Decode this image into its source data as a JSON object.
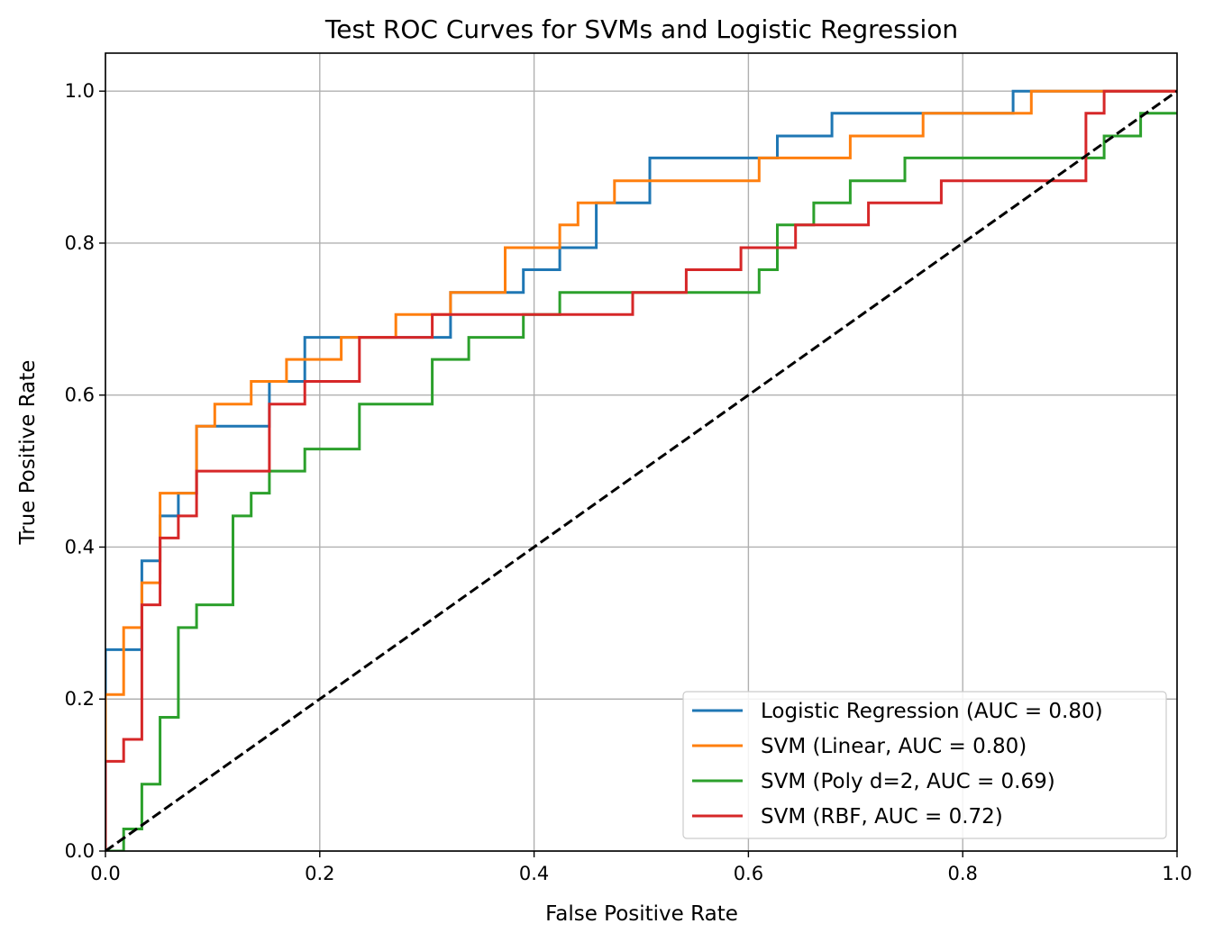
{
  "chart_data": {
    "type": "line",
    "title": "Test ROC Curves for SVMs and Logistic Regression",
    "xlabel": "False Positive Rate",
    "ylabel": "True Positive Rate",
    "xlim": [
      0.0,
      1.0
    ],
    "ylim": [
      0.0,
      1.05
    ],
    "xticks": [
      0.0,
      0.2,
      0.4,
      0.6,
      0.8,
      1.0
    ],
    "yticks": [
      0.0,
      0.2,
      0.4,
      0.6,
      0.8,
      1.0
    ],
    "xtick_labels": [
      "0.0",
      "0.2",
      "0.4",
      "0.6",
      "0.8",
      "1.0"
    ],
    "ytick_labels": [
      "0.0",
      "0.2",
      "0.4",
      "0.6",
      "0.8",
      "1.0"
    ],
    "grid": true,
    "legend_position": "bottom-right",
    "series": [
      {
        "name": "Logistic Regression (AUC = 0.80)",
        "color": "#1f77b4",
        "x": [
          0.0,
          0.0,
          0.034,
          0.034,
          0.051,
          0.051,
          0.068,
          0.068,
          0.085,
          0.085,
          0.102,
          0.102,
          0.153,
          0.153,
          0.186,
          0.186,
          0.322,
          0.322,
          0.39,
          0.39,
          0.424,
          0.424,
          0.458,
          0.458,
          0.508,
          0.508,
          0.627,
          0.627,
          0.678,
          0.678,
          0.847,
          0.847,
          1.0
        ],
        "y": [
          0.0,
          0.265,
          0.265,
          0.382,
          0.382,
          0.441,
          0.441,
          0.471,
          0.471,
          0.559,
          0.559,
          0.559,
          0.559,
          0.618,
          0.618,
          0.676,
          0.676,
          0.735,
          0.735,
          0.765,
          0.765,
          0.794,
          0.794,
          0.853,
          0.853,
          0.912,
          0.912,
          0.941,
          0.941,
          0.971,
          0.971,
          1.0,
          1.0
        ]
      },
      {
        "name": "SVM (Linear, AUC = 0.80)",
        "color": "#ff7f0e",
        "x": [
          0.0,
          0.0,
          0.017,
          0.017,
          0.034,
          0.034,
          0.051,
          0.051,
          0.085,
          0.085,
          0.102,
          0.102,
          0.136,
          0.136,
          0.169,
          0.169,
          0.22,
          0.22,
          0.271,
          0.271,
          0.322,
          0.322,
          0.373,
          0.373,
          0.424,
          0.424,
          0.441,
          0.441,
          0.475,
          0.475,
          0.61,
          0.61,
          0.695,
          0.695,
          0.763,
          0.763,
          0.864,
          0.864,
          1.0
        ],
        "y": [
          0.0,
          0.206,
          0.206,
          0.294,
          0.294,
          0.353,
          0.353,
          0.471,
          0.471,
          0.559,
          0.559,
          0.588,
          0.588,
          0.618,
          0.618,
          0.647,
          0.647,
          0.676,
          0.676,
          0.706,
          0.706,
          0.735,
          0.735,
          0.794,
          0.794,
          0.824,
          0.824,
          0.853,
          0.853,
          0.882,
          0.882,
          0.912,
          0.912,
          0.941,
          0.941,
          0.971,
          0.971,
          1.0,
          1.0
        ]
      },
      {
        "name": "SVM (Poly d=2, AUC = 0.69)",
        "color": "#2ca02c",
        "x": [
          0.0,
          0.017,
          0.017,
          0.034,
          0.034,
          0.051,
          0.051,
          0.068,
          0.068,
          0.085,
          0.085,
          0.119,
          0.119,
          0.136,
          0.136,
          0.153,
          0.153,
          0.186,
          0.186,
          0.237,
          0.237,
          0.305,
          0.305,
          0.339,
          0.339,
          0.39,
          0.39,
          0.424,
          0.424,
          0.61,
          0.61,
          0.627,
          0.627,
          0.661,
          0.661,
          0.695,
          0.695,
          0.746,
          0.746,
          0.932,
          0.932,
          0.966,
          0.966,
          1.0
        ],
        "y": [
          0.0,
          0.0,
          0.029,
          0.029,
          0.088,
          0.088,
          0.176,
          0.176,
          0.294,
          0.294,
          0.324,
          0.324,
          0.441,
          0.441,
          0.471,
          0.471,
          0.5,
          0.5,
          0.529,
          0.529,
          0.588,
          0.588,
          0.647,
          0.647,
          0.676,
          0.676,
          0.706,
          0.706,
          0.735,
          0.735,
          0.765,
          0.765,
          0.824,
          0.824,
          0.853,
          0.853,
          0.882,
          0.882,
          0.912,
          0.912,
          0.941,
          0.941,
          0.971,
          0.971
        ]
      },
      {
        "name": "SVM (RBF, AUC = 0.72)",
        "color": "#d62728",
        "x": [
          0.0,
          0.0,
          0.017,
          0.017,
          0.034,
          0.034,
          0.051,
          0.051,
          0.068,
          0.068,
          0.085,
          0.085,
          0.153,
          0.153,
          0.186,
          0.186,
          0.237,
          0.237,
          0.305,
          0.305,
          0.492,
          0.492,
          0.542,
          0.542,
          0.593,
          0.593,
          0.644,
          0.644,
          0.712,
          0.712,
          0.78,
          0.78,
          0.915,
          0.915,
          0.932,
          0.932,
          1.0
        ],
        "y": [
          0.0,
          0.118,
          0.118,
          0.147,
          0.147,
          0.324,
          0.324,
          0.412,
          0.412,
          0.441,
          0.441,
          0.5,
          0.5,
          0.588,
          0.588,
          0.618,
          0.618,
          0.676,
          0.676,
          0.706,
          0.706,
          0.735,
          0.735,
          0.765,
          0.765,
          0.794,
          0.794,
          0.824,
          0.824,
          0.853,
          0.853,
          0.882,
          0.882,
          0.971,
          0.971,
          1.0,
          1.0
        ]
      }
    ],
    "reference_line": {
      "x": [
        0.0,
        1.0
      ],
      "y": [
        0.0,
        1.0
      ],
      "color": "#000000",
      "dashed": true
    }
  }
}
